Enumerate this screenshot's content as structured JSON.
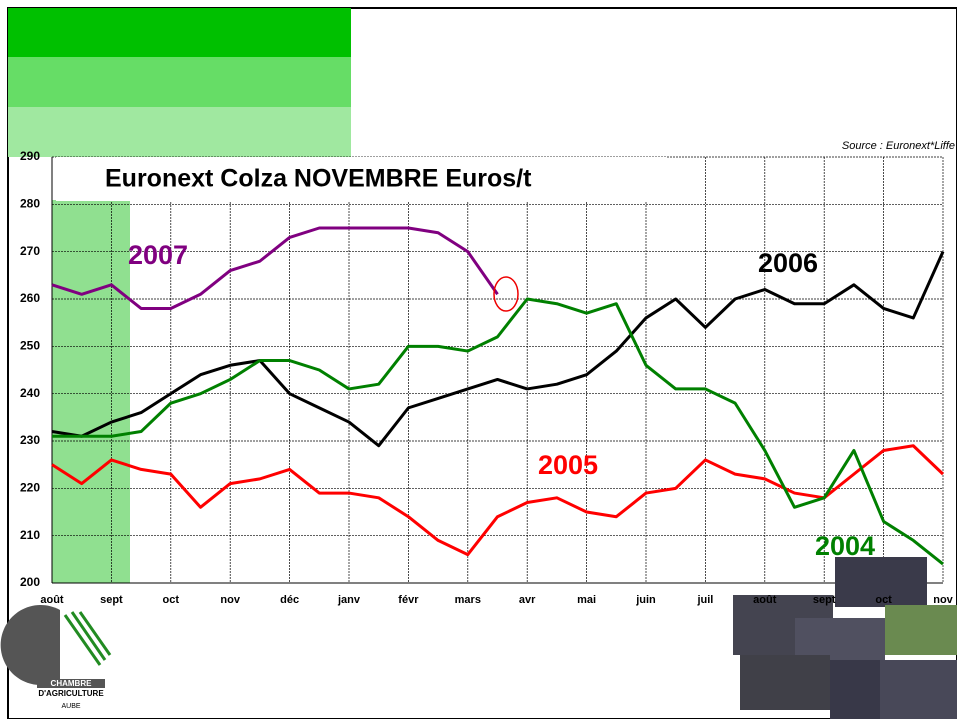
{
  "chart_data": {
    "type": "line",
    "title": "Euronext Colza NOVEMBRE Euros/t",
    "source": "Source : Euronext*Liffe",
    "x": [
      0,
      0.5,
      1,
      1.5,
      2,
      2.5,
      3,
      3.5,
      4,
      4.5,
      5,
      5.5,
      6,
      6.5,
      7,
      7.5,
      8,
      8.5,
      9,
      9.5,
      10,
      10.5,
      11,
      11.5,
      12,
      12.5,
      13,
      13.5,
      14,
      14.5,
      15
    ],
    "xlim": [
      0,
      15
    ],
    "xticks": [
      {
        "value": 0,
        "label": "août"
      },
      {
        "value": 1,
        "label": "sept"
      },
      {
        "value": 2,
        "label": "oct"
      },
      {
        "value": 3,
        "label": "nov"
      },
      {
        "value": 4,
        "label": "déc"
      },
      {
        "value": 5,
        "label": "janv"
      },
      {
        "value": 6,
        "label": "févr"
      },
      {
        "value": 7,
        "label": "mars"
      },
      {
        "value": 8,
        "label": "avr"
      },
      {
        "value": 9,
        "label": "mai"
      },
      {
        "value": 10,
        "label": "juin"
      },
      {
        "value": 11,
        "label": "juil"
      },
      {
        "value": 12,
        "label": "août"
      },
      {
        "value": 13,
        "label": "sept"
      },
      {
        "value": 14,
        "label": "oct"
      },
      {
        "value": 15,
        "label": "nov"
      }
    ],
    "ylim": [
      200,
      290
    ],
    "yticks": [
      200,
      210,
      220,
      230,
      240,
      250,
      260,
      270,
      280,
      290
    ],
    "grid": true,
    "series": [
      {
        "name": "2007",
        "color": "#800080",
        "values": [
          263,
          261,
          263,
          258,
          258,
          261,
          266,
          268,
          273,
          275,
          275,
          275,
          275,
          274,
          270,
          261,
          null,
          null,
          null,
          null,
          null,
          null,
          null,
          null,
          null,
          null,
          null,
          null,
          null,
          null,
          null
        ]
      },
      {
        "name": "2006",
        "color": "#000000",
        "values": [
          232,
          231,
          234,
          236,
          240,
          244,
          246,
          247,
          240,
          237,
          234,
          229,
          237,
          239,
          241,
          243,
          241,
          242,
          244,
          249,
          256,
          260,
          254,
          260,
          262,
          259,
          259,
          263,
          258,
          256,
          270
        ]
      },
      {
        "name": "2005",
        "color": "#ff0000",
        "values": [
          225,
          221,
          226,
          224,
          223,
          216,
          221,
          222,
          224,
          219,
          219,
          218,
          214,
          209,
          206,
          214,
          217,
          218,
          215,
          214,
          219,
          220,
          226,
          223,
          222,
          219,
          218,
          223,
          228,
          229,
          223
        ]
      },
      {
        "name": "2004",
        "color": "#008000",
        "values": [
          231,
          231,
          231,
          232,
          238,
          240,
          243,
          247,
          247,
          245,
          241,
          242,
          250,
          250,
          249,
          252,
          260,
          259,
          257,
          259,
          246,
          241,
          241,
          238,
          228,
          216,
          218,
          228,
          213,
          209,
          204
        ]
      }
    ],
    "logo": {
      "line1": "CHAMBRE",
      "line2": "D'AGRICULTURE",
      "line3": "AUBE"
    }
  }
}
